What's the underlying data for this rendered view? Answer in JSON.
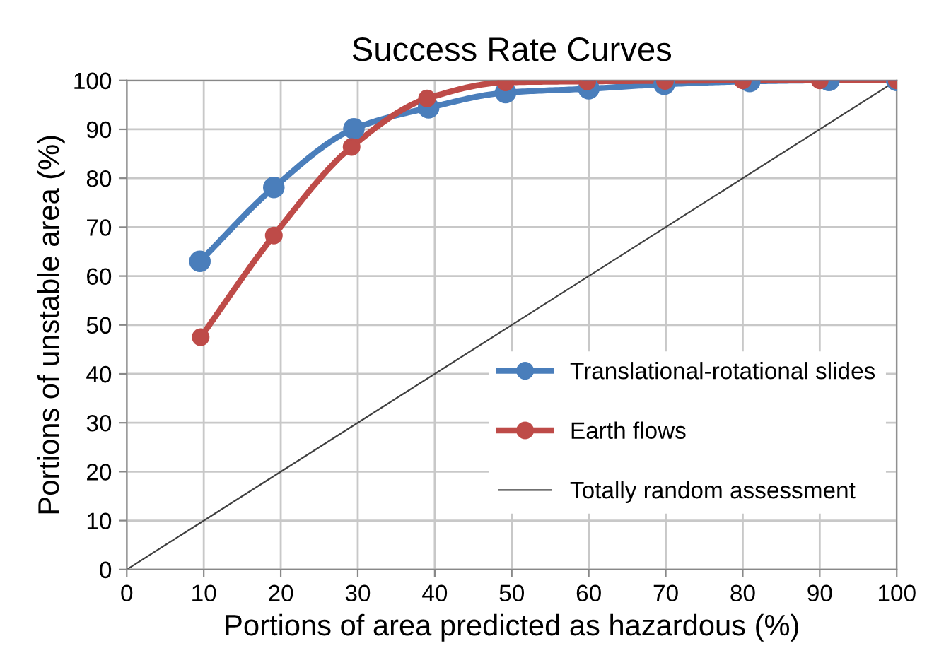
{
  "chart_data": {
    "type": "line",
    "title": "Success Rate Curves",
    "xlabel": "Portions of area predicted as hazardous (%)",
    "ylabel": "Portions of unstable area (%)",
    "xlim": [
      0,
      100
    ],
    "xticks": [
      0,
      10,
      20,
      30,
      40,
      50,
      60,
      70,
      80,
      90,
      100
    ],
    "ylim": [
      0,
      100
    ],
    "yticks": [
      0,
      10,
      20,
      30,
      40,
      50,
      60,
      70,
      80,
      90,
      100
    ],
    "grid": true,
    "legend": "right",
    "marker": "circle",
    "series": [
      {
        "name": "Translational-rotational slides",
        "color": "#4a7ebb",
        "x": [
          9.5,
          19.1,
          29.5,
          39.2,
          49.2,
          60,
          69.8,
          80.9,
          91.2,
          100
        ],
        "values": [
          63,
          78.1,
          90.1,
          94.4,
          97.5,
          98.3,
          99.2,
          99.8,
          100,
          100
        ]
      },
      {
        "name": "Earth flows",
        "color": "#be4b48",
        "x": [
          9.6,
          19.1,
          29.2,
          39.0,
          49.2,
          59.8,
          69.9,
          80.0,
          90,
          100
        ],
        "values": [
          47.5,
          68.3,
          86.4,
          96.3,
          99.6,
          99.8,
          99.9,
          100,
          100,
          100
        ]
      },
      {
        "name": "Totally random assessment",
        "color": "#404040",
        "marker": "none",
        "x": [
          0,
          100
        ],
        "values": [
          0,
          100
        ]
      }
    ]
  }
}
